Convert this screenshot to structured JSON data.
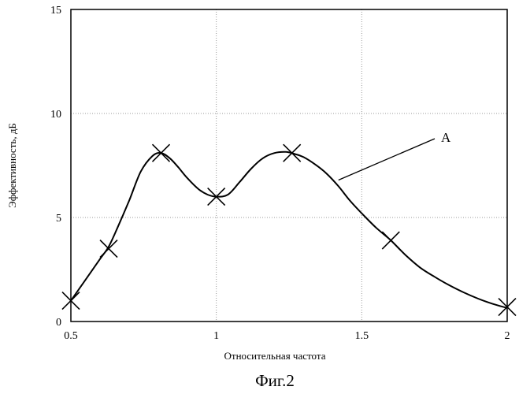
{
  "chart_data": {
    "type": "line",
    "title": "",
    "xlabel": "Относительная частота",
    "ylabel": "Эффективность, дБ",
    "xlim": [
      0.5,
      2
    ],
    "ylim": [
      0,
      15
    ],
    "x_ticks": [
      "0.5",
      "1",
      "1.5",
      "2"
    ],
    "y_ticks": [
      "0",
      "5",
      "10",
      "15"
    ],
    "grid": "dotted",
    "legend": "none",
    "series": [
      {
        "x": [
          0.5,
          0.55,
          0.6,
          0.63,
          0.66,
          0.7,
          0.74,
          0.78,
          0.81,
          0.84,
          0.87,
          0.9,
          0.94,
          0.97,
          1.0,
          1.04,
          1.08,
          1.12,
          1.16,
          1.2,
          1.24,
          1.27,
          1.3,
          1.34,
          1.38,
          1.42,
          1.46,
          1.5,
          1.55,
          1.6,
          1.65,
          1.7,
          1.75,
          1.8,
          1.85,
          1.9,
          1.95,
          2.0
        ],
        "y": [
          1.0,
          2.0,
          3.0,
          3.6,
          4.5,
          5.8,
          7.2,
          7.95,
          8.1,
          7.85,
          7.4,
          6.9,
          6.35,
          6.1,
          6.0,
          6.1,
          6.7,
          7.35,
          7.85,
          8.1,
          8.15,
          8.05,
          7.9,
          7.55,
          7.1,
          6.5,
          5.8,
          5.2,
          4.5,
          3.9,
          3.2,
          2.6,
          2.15,
          1.75,
          1.4,
          1.1,
          0.85,
          0.65
        ]
      }
    ],
    "markers": [
      {
        "x": 0.5,
        "y": 1.0
      },
      {
        "x": 0.63,
        "y": 3.5
      },
      {
        "x": 0.81,
        "y": 8.1
      },
      {
        "x": 1.0,
        "y": 6.0
      },
      {
        "x": 1.26,
        "y": 8.1
      },
      {
        "x": 1.6,
        "y": 3.9
      },
      {
        "x": 2.0,
        "y": 0.7
      }
    ],
    "annotation": {
      "text": "A"
    }
  },
  "caption": "Фиг.2",
  "colors": {
    "line": "#000000",
    "grid": "#9a9a9a",
    "background": "#ffffff"
  }
}
